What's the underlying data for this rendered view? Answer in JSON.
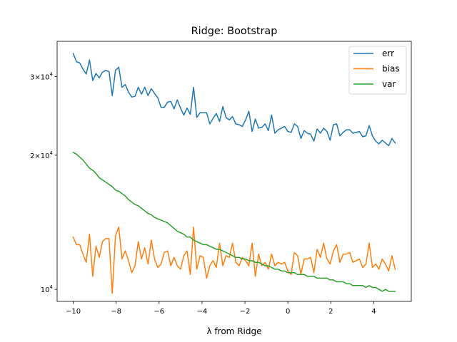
{
  "chart_data": {
    "type": "line",
    "title": "Ridge: Bootstrap",
    "xlabel": "λ from Ridge",
    "ylabel": "",
    "yscale": "log",
    "xlim": [
      -10.75,
      5.75
    ],
    "ylim": [
      9400,
      36000
    ],
    "xticks": [
      -10,
      -8,
      -6,
      -4,
      -2,
      0,
      2,
      4
    ],
    "xtick_labels": [
      "−10",
      "−8",
      "−6",
      "−4",
      "−2",
      "0",
      "2",
      "4"
    ],
    "yticks": [
      {
        "value": 10000,
        "mantissa": "",
        "base": "10",
        "exp": "4"
      },
      {
        "value": 20000,
        "mantissa": "2×",
        "base": "10",
        "exp": "4"
      },
      {
        "value": 30000,
        "mantissa": "3×",
        "base": "10",
        "exp": "4"
      }
    ],
    "legend": {
      "position": "top-right",
      "entries": [
        "err",
        "bias",
        "var"
      ]
    },
    "grid": false,
    "x": {
      "start": -10,
      "stop": 5,
      "num": 100
    },
    "series": [
      {
        "name": "err",
        "color": "#1f77b4",
        "values": [
          33800,
          32400,
          32200,
          31200,
          30400,
          32700,
          29400,
          30500,
          29800,
          30700,
          31000,
          30800,
          27200,
          31000,
          31500,
          28400,
          28800,
          27700,
          27000,
          27100,
          28400,
          27400,
          28400,
          27200,
          28200,
          27500,
          26900,
          25600,
          25600,
          26300,
          26400,
          25400,
          26600,
          25500,
          24600,
          25500,
          24700,
          28400,
          24300,
          24900,
          24900,
          24900,
          23500,
          24200,
          24800,
          23800,
          25700,
          24300,
          24000,
          24400,
          23500,
          23400,
          23200,
          24000,
          25100,
          22600,
          24100,
          23000,
          23100,
          23500,
          22700,
          24600,
          22400,
          22800,
          23000,
          23200,
          22600,
          22500,
          23500,
          23200,
          21800,
          22700,
          22400,
          22300,
          21500,
          22900,
          22400,
          23000,
          22600,
          21600,
          23400,
          23500,
          22100,
          22500,
          22800,
          22800,
          22400,
          22500,
          22600,
          22000,
          22100,
          23300,
          22100,
          21500,
          21200,
          21600,
          21300,
          21000,
          21800,
          21300
        ]
      },
      {
        "name": "bias",
        "color": "#ff7f0e",
        "values": [
          13100,
          12600,
          12600,
          12000,
          11500,
          13300,
          10700,
          12500,
          11800,
          12800,
          13000,
          13000,
          9800,
          13200,
          13800,
          11700,
          12200,
          11600,
          10900,
          11300,
          12800,
          11700,
          12400,
          11400,
          12900,
          11700,
          11200,
          11400,
          12100,
          12200,
          11300,
          11800,
          11300,
          11100,
          11900,
          12200,
          10800,
          13800,
          11100,
          11900,
          11800,
          10600,
          11300,
          11600,
          11200,
          12700,
          11300,
          11900,
          11800,
          12700,
          11500,
          11300,
          11800,
          11600,
          11300,
          12700,
          10700,
          12000,
          11300,
          11500,
          11100,
          12000,
          11300,
          11500,
          11400,
          11500,
          11000,
          10800,
          12100,
          11900,
          10800,
          11700,
          11700,
          11800,
          10900,
          12300,
          11800,
          12700,
          11700,
          11400,
          12200,
          12600,
          11500,
          12000,
          12000,
          12100,
          11500,
          11600,
          11700,
          11200,
          11400,
          12700,
          11200,
          11400,
          11100,
          11700,
          11400,
          11000,
          11900,
          11100
        ]
      },
      {
        "name": "var",
        "color": "#2ca02c",
        "values": [
          20300,
          20100,
          19800,
          19500,
          19100,
          18700,
          18500,
          18200,
          17800,
          17600,
          17400,
          17200,
          17000,
          16700,
          16600,
          16400,
          16200,
          15900,
          15700,
          15500,
          15400,
          15200,
          15000,
          14800,
          14700,
          14500,
          14400,
          14300,
          14200,
          14100,
          13900,
          13700,
          13500,
          13400,
          13300,
          13100,
          13100,
          12900,
          12800,
          12700,
          12600,
          12600,
          12500,
          12400,
          12300,
          12300,
          12200,
          12100,
          12000,
          11900,
          11800,
          11800,
          11700,
          11700,
          11600,
          11600,
          11500,
          11500,
          11400,
          11300,
          11300,
          11200,
          11100,
          11100,
          11000,
          11000,
          10900,
          10900,
          10900,
          10800,
          10800,
          10800,
          10700,
          10700,
          10700,
          10600,
          10600,
          10600,
          10600,
          10500,
          10500,
          10400,
          10400,
          10400,
          10300,
          10300,
          10200,
          10200,
          10200,
          10200,
          10100,
          10200,
          10100,
          10100,
          10000,
          9900,
          10000,
          9900,
          9900,
          9900
        ]
      }
    ]
  }
}
